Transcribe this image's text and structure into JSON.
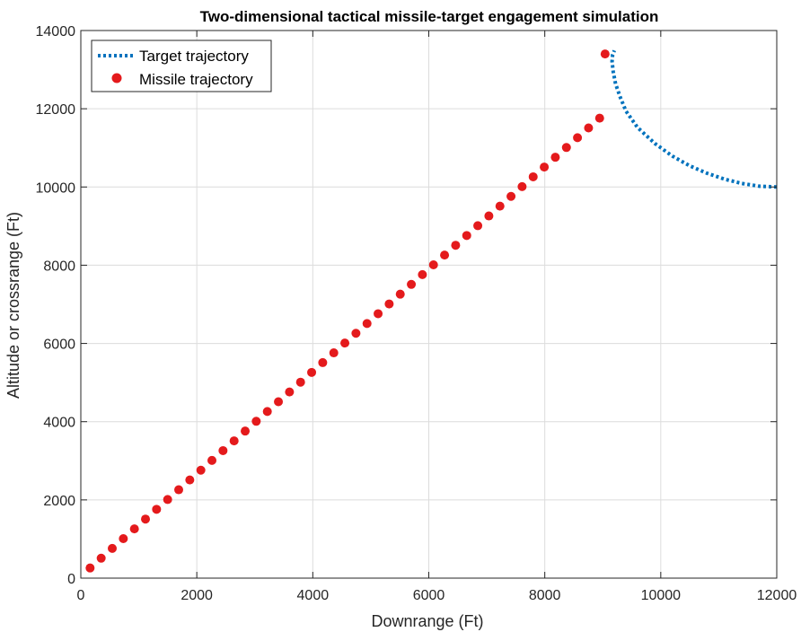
{
  "chart_data": {
    "type": "line",
    "title": "Two-dimensional tactical missile-target engagement simulation",
    "xlabel": "Downrange (Ft)",
    "ylabel": "Altitude or crossrange (Ft)",
    "xlim": [
      0,
      12000
    ],
    "ylim": [
      0,
      14000
    ],
    "xticks": [
      0,
      2000,
      4000,
      6000,
      8000,
      10000,
      12000
    ],
    "yticks": [
      0,
      2000,
      4000,
      6000,
      8000,
      10000,
      12000,
      14000
    ],
    "xtick_labels": [
      "0",
      "2000",
      "4000",
      "6000",
      "8000",
      "10000",
      "12000"
    ],
    "ytick_labels": [
      "0",
      "2000",
      "4000",
      "6000",
      "8000",
      "10000",
      "12000",
      "14000"
    ],
    "grid": true,
    "legend": {
      "placement": "top-left",
      "entries": [
        "Target trajectory",
        "Missile trajectory"
      ]
    },
    "series": [
      {
        "name": "Target trajectory",
        "style": "dotted-line",
        "color": "#0072BD",
        "x": [
          12000,
          11700,
          11400,
          11100,
          10800,
          10500,
          10200,
          9900,
          9600,
          9400,
          9300,
          9220,
          9180,
          9160,
          9170,
          9200
        ],
        "y": [
          10000,
          10020,
          10090,
          10200,
          10350,
          10540,
          10790,
          11110,
          11520,
          11940,
          12300,
          12640,
          12950,
          13210,
          13380,
          13490
        ]
      },
      {
        "name": "Missile trajectory",
        "style": "markers",
        "color": "#E41A1C",
        "x": [
          160,
          351,
          542,
          733,
          924,
          1115,
          1306,
          1497,
          1688,
          1879,
          2070,
          2261,
          2452,
          2643,
          2834,
          3025,
          3216,
          3407,
          3598,
          3789,
          3980,
          4171,
          4362,
          4553,
          4744,
          4935,
          5126,
          5317,
          5508,
          5699,
          5890,
          6081,
          6272,
          6463,
          6654,
          6845,
          7036,
          7227,
          7418,
          7609,
          7800,
          7991,
          8182,
          8373,
          8564,
          8755,
          8946,
          9040
        ],
        "y": [
          260,
          510,
          760,
          1010,
          1260,
          1510,
          1760,
          2010,
          2260,
          2510,
          2760,
          3010,
          3260,
          3510,
          3760,
          4010,
          4260,
          4510,
          4760,
          5010,
          5260,
          5510,
          5760,
          6010,
          6260,
          6510,
          6760,
          7010,
          7260,
          7510,
          7760,
          8010,
          8260,
          8510,
          8760,
          9010,
          9260,
          9510,
          9760,
          10010,
          10260,
          10510,
          10760,
          11010,
          11260,
          11510,
          11760,
          13400
        ]
      }
    ]
  }
}
